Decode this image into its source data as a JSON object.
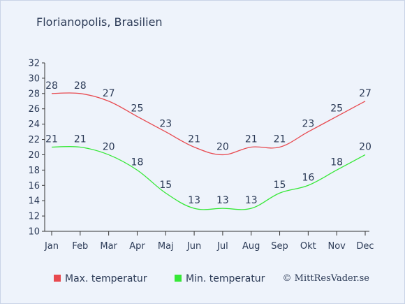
{
  "chart_data": {
    "type": "line",
    "title": "Florianopolis, Brasilien",
    "categories": [
      "Jan",
      "Feb",
      "Mar",
      "Apr",
      "Maj",
      "Jun",
      "Jul",
      "Aug",
      "Sep",
      "Okt",
      "Nov",
      "Dec"
    ],
    "series": [
      {
        "name": "Max. temperatur",
        "color": "#e8494f",
        "values": [
          28,
          28,
          27,
          25,
          23,
          21,
          20,
          21,
          21,
          23,
          25,
          27
        ]
      },
      {
        "name": "Min. temperatur",
        "color": "#36e837",
        "values": [
          21,
          21,
          20,
          18,
          15,
          13,
          13,
          13,
          15,
          16,
          18,
          20
        ]
      }
    ],
    "ylim": [
      10,
      32
    ],
    "yticks": [
      10,
      12,
      14,
      16,
      18,
      20,
      22,
      24,
      26,
      28,
      30,
      32
    ],
    "grid": false,
    "legend_position": "bottom",
    "background_color": "#eef3fb",
    "text_color": "#2b3a56",
    "copyright": "© MittResVader.se"
  }
}
